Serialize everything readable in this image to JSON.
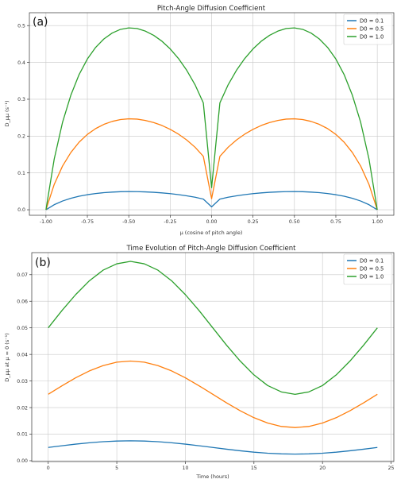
{
  "chart_data": [
    {
      "type": "line",
      "panel_label": "(a)",
      "title": "Pitch-Angle Diffusion Coefficient",
      "xlabel": "μ (cosine of pitch angle)",
      "ylabel": "D_μμ (s⁻¹)",
      "xlim": [
        -1.1,
        1.1
      ],
      "ylim": [
        -0.015,
        0.535
      ],
      "xticks": [
        "-1.00",
        "-0.75",
        "-0.50",
        "-0.25",
        "0.00",
        "0.25",
        "0.50",
        "0.75",
        "1.00"
      ],
      "yticks": [
        "0.0",
        "0.1",
        "0.2",
        "0.3",
        "0.4",
        "0.5"
      ],
      "grid": true,
      "legend_position": "top-right",
      "x": [
        -1.0,
        -0.95,
        -0.9,
        -0.85,
        -0.8,
        -0.75,
        -0.7,
        -0.65,
        -0.6,
        -0.55,
        -0.5,
        -0.45,
        -0.4,
        -0.35,
        -0.3,
        -0.25,
        -0.2,
        -0.15,
        -0.1,
        -0.05,
        0.0,
        0.05,
        0.1,
        0.15,
        0.2,
        0.25,
        0.3,
        0.35,
        0.4,
        0.45,
        0.5,
        0.55,
        0.6,
        0.65,
        0.7,
        0.75,
        0.8,
        0.85,
        0.9,
        0.95,
        1.0
      ],
      "series": [
        {
          "name": "D0 = 0.1",
          "color": "#1f77b4",
          "values": [
            0.0,
            0.0138,
            0.0237,
            0.0311,
            0.0367,
            0.0409,
            0.0441,
            0.0464,
            0.048,
            0.049,
            0.0494,
            0.0492,
            0.0485,
            0.0474,
            0.0458,
            0.0437,
            0.0411,
            0.0379,
            0.034,
            0.029,
            0.008,
            0.029,
            0.034,
            0.0379,
            0.0411,
            0.0437,
            0.0458,
            0.0474,
            0.0485,
            0.0492,
            0.0494,
            0.049,
            0.048,
            0.0464,
            0.0441,
            0.0409,
            0.0367,
            0.0311,
            0.0237,
            0.0138,
            0.0
          ]
        },
        {
          "name": "D0 = 0.5",
          "color": "#ff7f0e",
          "values": [
            0.0,
            0.0689,
            0.1186,
            0.1553,
            0.1835,
            0.2046,
            0.2204,
            0.2319,
            0.2399,
            0.2449,
            0.2469,
            0.2461,
            0.2425,
            0.2369,
            0.2289,
            0.2184,
            0.2053,
            0.1893,
            0.1698,
            0.1451,
            0.03,
            0.1451,
            0.1698,
            0.1893,
            0.2053,
            0.2184,
            0.2289,
            0.2369,
            0.2425,
            0.2461,
            0.2469,
            0.2449,
            0.2399,
            0.2319,
            0.2204,
            0.2046,
            0.1835,
            0.1553,
            0.1186,
            0.0689,
            0.0
          ]
        },
        {
          "name": "D0 = 1.0",
          "color": "#2ca02c",
          "values": [
            0.0,
            0.1378,
            0.2371,
            0.3106,
            0.367,
            0.4093,
            0.4408,
            0.4638,
            0.4798,
            0.4898,
            0.4938,
            0.4922,
            0.485,
            0.4737,
            0.4577,
            0.4368,
            0.4106,
            0.3785,
            0.3395,
            0.2902,
            0.06,
            0.2902,
            0.3395,
            0.3785,
            0.4106,
            0.4368,
            0.4577,
            0.4737,
            0.485,
            0.4922,
            0.4938,
            0.4898,
            0.4798,
            0.4638,
            0.4408,
            0.4093,
            0.367,
            0.3106,
            0.2371,
            0.1378,
            0.0
          ]
        }
      ]
    },
    {
      "type": "line",
      "panel_label": "(b)",
      "title": "Time Evolution of Pitch-Angle Diffusion Coefficient",
      "xlabel": "Time (hours)",
      "ylabel": "D_μμ at μ = 0 (s⁻¹)",
      "xlim": [
        -1.2,
        25.2
      ],
      "ylim": [
        -0.0003,
        0.0783
      ],
      "xticks": [
        "0",
        "5",
        "10",
        "15",
        "20",
        "25"
      ],
      "yticks": [
        "0.00",
        "0.01",
        "0.02",
        "0.03",
        "0.04",
        "0.05",
        "0.06",
        "0.07"
      ],
      "grid": true,
      "legend_position": "top-right",
      "x": [
        0,
        1,
        2,
        3,
        4,
        5,
        6,
        7,
        8,
        9,
        10,
        11,
        12,
        13,
        14,
        15,
        16,
        17,
        18,
        19,
        20,
        21,
        22,
        23,
        24
      ],
      "series": [
        {
          "name": "D0 = 0.1",
          "color": "#1f77b4",
          "values": [
            0.005,
            0.00565,
            0.00625,
            0.00677,
            0.00717,
            0.00741,
            0.0075,
            0.00741,
            0.00717,
            0.00677,
            0.00625,
            0.00565,
            0.005,
            0.00435,
            0.00375,
            0.00323,
            0.00283,
            0.00259,
            0.0025,
            0.00259,
            0.00283,
            0.00323,
            0.00375,
            0.00435,
            0.005
          ]
        },
        {
          "name": "D0 = 0.5",
          "color": "#ff7f0e",
          "values": [
            0.025,
            0.0282,
            0.0312,
            0.0338,
            0.0358,
            0.0371,
            0.0375,
            0.0371,
            0.0358,
            0.0338,
            0.0312,
            0.0282,
            0.025,
            0.0218,
            0.0188,
            0.0162,
            0.0142,
            0.0129,
            0.0125,
            0.0129,
            0.0142,
            0.0162,
            0.0188,
            0.0218,
            0.025
          ]
        },
        {
          "name": "D0 = 1.0",
          "color": "#2ca02c",
          "values": [
            0.05,
            0.0565,
            0.0625,
            0.0677,
            0.0717,
            0.0741,
            0.075,
            0.0741,
            0.0717,
            0.0677,
            0.0625,
            0.0565,
            0.05,
            0.0435,
            0.0375,
            0.0323,
            0.0283,
            0.0259,
            0.025,
            0.0259,
            0.0283,
            0.0323,
            0.0375,
            0.0435,
            0.05
          ]
        }
      ]
    }
  ]
}
